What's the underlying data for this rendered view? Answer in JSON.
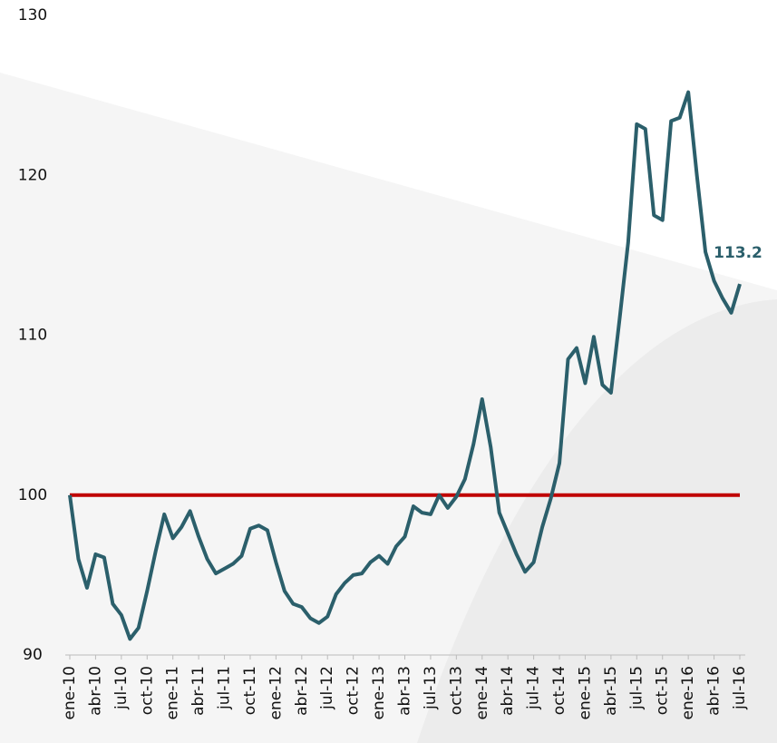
{
  "chart_data": {
    "type": "line",
    "categories": [
      "ene-10",
      null,
      null,
      "abr-10",
      null,
      null,
      "jul-10",
      null,
      null,
      "oct-10",
      null,
      null,
      "ene-11",
      null,
      null,
      "abr-11",
      null,
      null,
      "jul-11",
      null,
      null,
      "oct-11",
      null,
      null,
      "ene-12",
      null,
      null,
      "abr-12",
      null,
      null,
      "jul-12",
      null,
      null,
      "oct-12",
      null,
      null,
      "ene-13",
      null,
      null,
      "abr-13",
      null,
      null,
      "jul-13",
      null,
      null,
      "oct-13",
      null,
      null,
      "ene-14",
      null,
      null,
      "abr-14",
      null,
      null,
      "jul-14",
      null,
      null,
      "oct-14",
      null,
      null,
      "ene-15",
      null,
      null,
      "abr-15",
      null,
      null,
      "jul-15",
      null,
      null,
      "oct-15",
      null,
      null,
      "ene-16",
      null,
      null,
      "abr-16",
      null,
      null,
      "jul-16"
    ],
    "values": [
      100,
      96,
      94.2,
      96.3,
      96.1,
      93.2,
      92.5,
      91,
      91.7,
      94,
      96.5,
      98.8,
      97.3,
      98,
      99,
      97.4,
      96,
      95.1,
      95.4,
      95.7,
      96.2,
      97.9,
      98.1,
      97.8,
      95.8,
      94,
      93.2,
      93,
      92.3,
      92,
      92.4,
      93.8,
      94.5,
      95,
      95.1,
      95.8,
      96.2,
      95.7,
      96.8,
      97.4,
      99.3,
      98.9,
      98.8,
      100,
      99.2,
      99.9,
      101,
      103.2,
      106,
      103,
      98.9,
      97.6,
      96.3,
      95.2,
      95.8,
      98,
      99.8,
      102,
      108.5,
      109.2,
      107,
      109.9,
      106.9,
      106.4,
      111,
      115.8,
      123.2,
      122.9,
      117.5,
      117.2,
      123.4,
      123.6,
      125.2,
      120,
      115.2,
      113.4,
      112.3,
      111.4,
      113.2
    ],
    "value_labels": [
      null,
      null,
      null,
      null,
      null,
      null,
      null,
      null,
      null,
      null,
      null,
      null,
      null,
      null,
      null,
      null,
      null,
      null,
      null,
      null,
      null,
      null,
      null,
      null,
      null,
      null,
      null,
      null,
      null,
      null,
      null,
      null,
      null,
      null,
      null,
      null,
      null,
      null,
      null,
      null,
      null,
      null,
      null,
      null,
      null,
      null,
      null,
      null,
      null,
      null,
      null,
      null,
      null,
      null,
      null,
      null,
      null,
      null,
      null,
      null,
      null,
      null,
      null,
      null,
      null,
      null,
      null,
      null,
      null,
      null,
      null,
      null,
      null,
      null,
      null,
      null,
      null,
      null,
      "113.2"
    ],
    "color": "#2b5f6b",
    "reference_line": {
      "value": 100,
      "color": "#c00000"
    },
    "ylim": [
      90,
      130
    ],
    "yticks": [
      90,
      100,
      110,
      120,
      130
    ],
    "grid": false
  }
}
